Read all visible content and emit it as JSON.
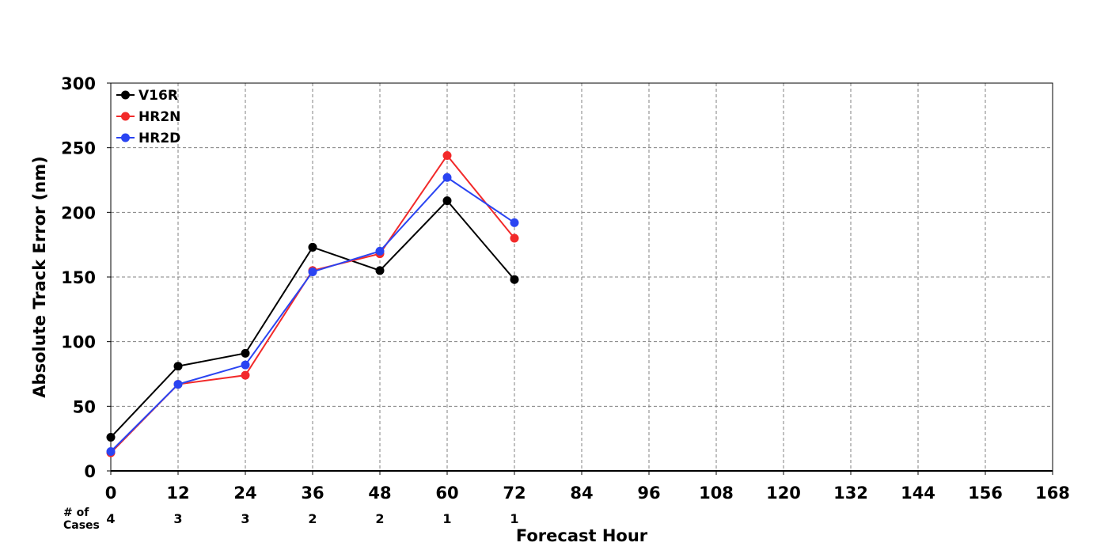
{
  "chart_data": {
    "type": "line",
    "title": "",
    "xlabel": "Forecast Hour",
    "ylabel": "Absolute Track Error (nm)",
    "xlim": [
      0,
      168
    ],
    "ylim": [
      0,
      300
    ],
    "x_ticks": [
      0,
      12,
      24,
      36,
      48,
      60,
      72,
      84,
      96,
      108,
      120,
      132,
      144,
      156,
      168
    ],
    "y_ticks": [
      0,
      50,
      100,
      150,
      200,
      250,
      300
    ],
    "grid": true,
    "legend_position": "top-left",
    "x": [
      0,
      12,
      24,
      36,
      48,
      60,
      72
    ],
    "series": [
      {
        "name": "V16R",
        "color": "#000000",
        "values": [
          26,
          81,
          91,
          173,
          155,
          209,
          148
        ]
      },
      {
        "name": "HR2N",
        "color": "#f22a2a",
        "values": [
          14,
          67,
          74,
          155,
          168,
          244,
          180
        ]
      },
      {
        "name": "HR2D",
        "color": "#2a44f2",
        "values": [
          15,
          67,
          82,
          154,
          170,
          227,
          192
        ]
      }
    ],
    "cases": {
      "label_line1": "# of",
      "label_line2": "Cases",
      "x": [
        0,
        12,
        24,
        36,
        48,
        60,
        72
      ],
      "counts": [
        "4",
        "3",
        "3",
        "2",
        "2",
        "1",
        "1"
      ]
    }
  }
}
